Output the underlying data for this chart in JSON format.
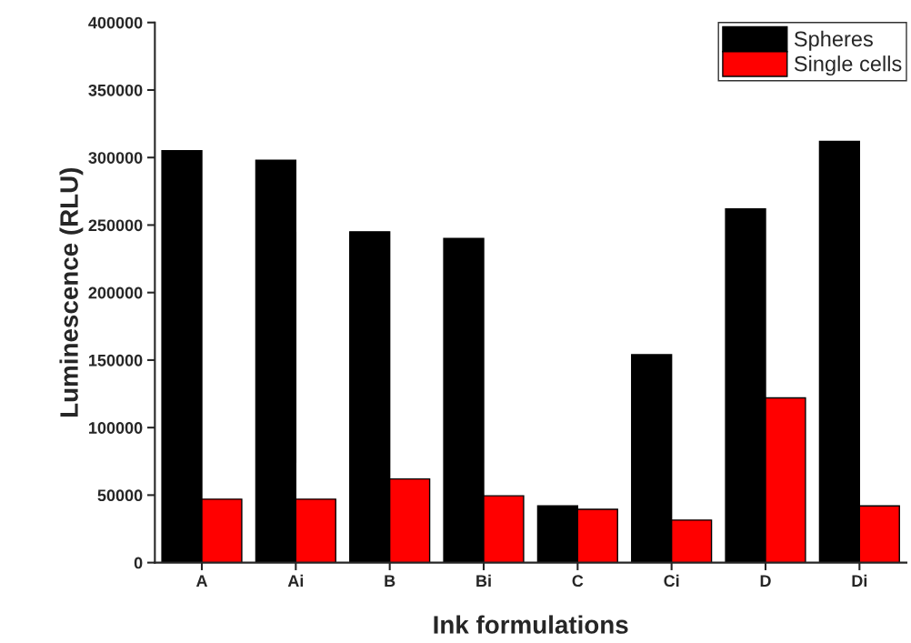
{
  "chart_data": {
    "type": "bar",
    "xlabel": "Ink formulations",
    "ylabel": "Luminescence (RLU)",
    "categories": [
      "A",
      "Ai",
      "B",
      "Bi",
      "C",
      "Ci",
      "D",
      "Di"
    ],
    "series": [
      {
        "name": "Spheres",
        "color": "#000000",
        "values": [
          305000,
          298000,
          245000,
          240000,
          42000,
          154000,
          262000,
          312000
        ]
      },
      {
        "name": "Single cells",
        "color": "#ff0000",
        "values": [
          47000,
          47000,
          62000,
          49500,
          39500,
          31500,
          122000,
          42000
        ]
      }
    ],
    "ylim": [
      0,
      400000
    ],
    "yticks": [
      0,
      50000,
      100000,
      150000,
      200000,
      250000,
      300000,
      350000,
      400000
    ],
    "grid": false,
    "legend": "top right"
  }
}
